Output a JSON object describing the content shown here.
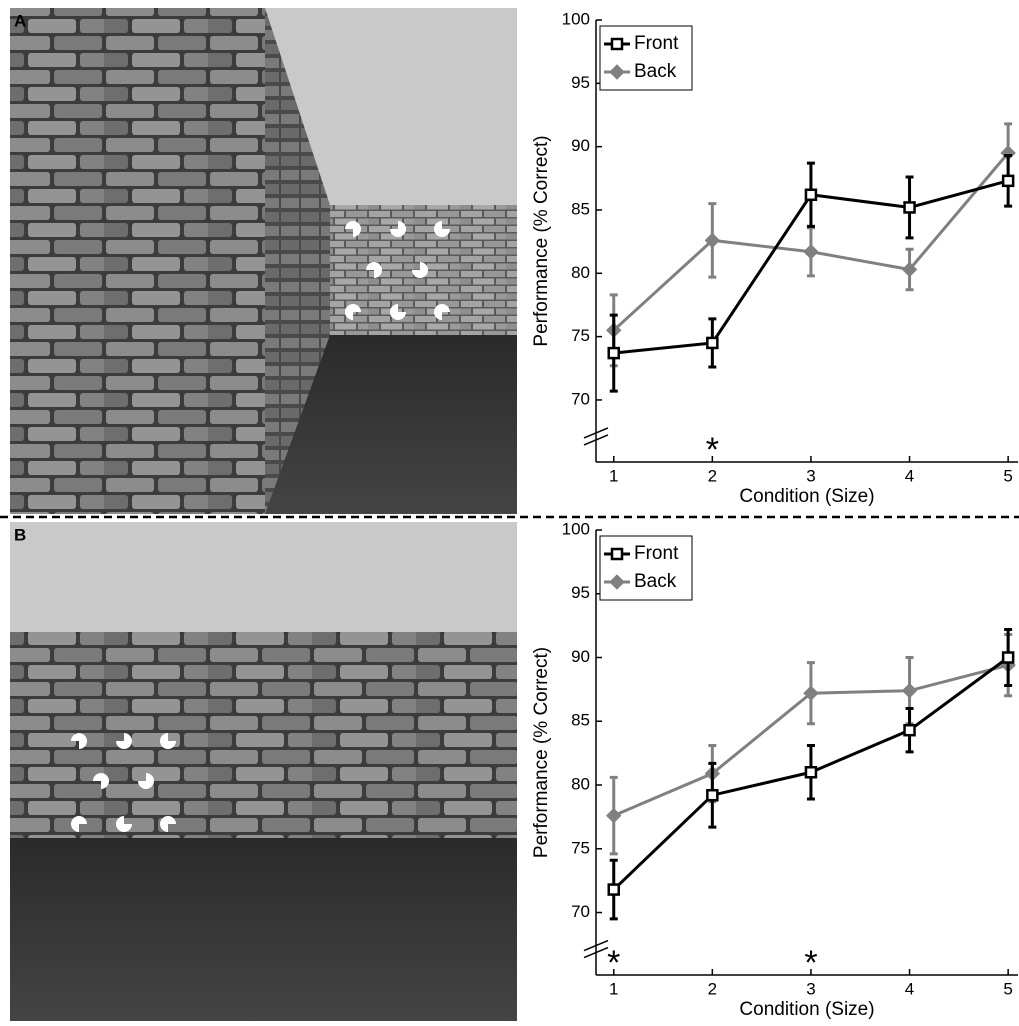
{
  "chart_data": [
    {
      "type": "line",
      "panel": "A",
      "xlabel": "Condition (Size)",
      "ylabel": "Performance (% Correct)",
      "x": [
        1,
        2,
        3,
        4,
        5
      ],
      "xlim": [
        0.82,
        5.1
      ],
      "xticks": [
        1,
        2,
        3,
        4,
        5
      ],
      "ylim": [
        65.1,
        100
      ],
      "yticks": [
        70,
        75,
        80,
        85,
        90,
        95,
        100
      ],
      "legend": "upper left",
      "series": [
        {
          "name": "Front",
          "color": "#000000",
          "marker": "square",
          "values": [
            73.7,
            74.5,
            86.2,
            85.2,
            87.3
          ],
          "errors": [
            3.0,
            1.9,
            2.5,
            2.4,
            2.0
          ]
        },
        {
          "name": "Back",
          "color": "#808080",
          "marker": "diamond",
          "values": [
            75.5,
            82.6,
            81.7,
            80.3,
            89.5
          ],
          "errors": [
            2.8,
            2.9,
            1.9,
            1.6,
            2.3
          ]
        }
      ],
      "annotations": [
        {
          "text": "*",
          "x": 2
        }
      ]
    },
    {
      "type": "line",
      "panel": "B",
      "xlabel": "Condition (Size)",
      "ylabel": "Performance (% Correct)",
      "x": [
        1,
        2,
        3,
        4,
        5
      ],
      "xlim": [
        0.82,
        5.1
      ],
      "xticks": [
        1,
        2,
        3,
        4,
        5
      ],
      "ylim": [
        65.1,
        100
      ],
      "yticks": [
        70,
        75,
        80,
        85,
        90,
        95,
        100
      ],
      "legend": "upper left",
      "series": [
        {
          "name": "Front",
          "color": "#000000",
          "marker": "square",
          "values": [
            71.8,
            79.2,
            81.0,
            84.3,
            90.0
          ],
          "errors": [
            2.3,
            2.5,
            2.1,
            1.7,
            2.2
          ]
        },
        {
          "name": "Back",
          "color": "#808080",
          "marker": "diamond",
          "values": [
            77.6,
            80.9,
            87.2,
            87.4,
            89.4
          ],
          "errors": [
            3.0,
            2.2,
            2.4,
            2.6,
            2.4
          ]
        }
      ],
      "annotations": [
        {
          "text": "*",
          "x": 1
        },
        {
          "text": "*",
          "x": 3
        }
      ]
    }
  ]
}
